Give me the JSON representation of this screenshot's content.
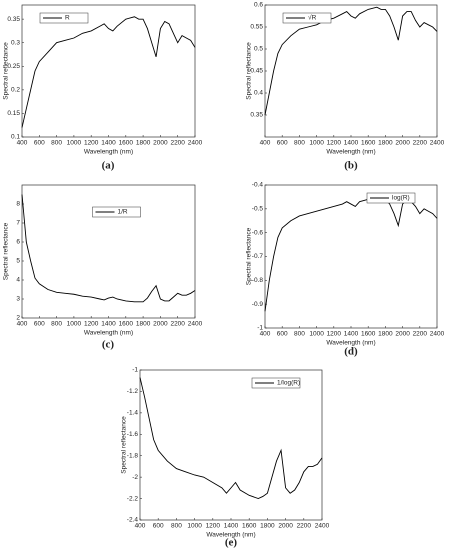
{
  "chart_data": [
    {
      "type": "line",
      "caption": "(a)",
      "x_label": "Wavelength (nm)",
      "y_label": "Spectral reflectance",
      "x": [
        400,
        450,
        500,
        550,
        600,
        700,
        800,
        900,
        1000,
        1100,
        1200,
        1300,
        1350,
        1400,
        1450,
        1500,
        1600,
        1700,
        1750,
        1800,
        1850,
        1900,
        1950,
        2000,
        2050,
        2100,
        2150,
        2200,
        2250,
        2300,
        2350,
        2400
      ],
      "series": [
        {
          "name": "R",
          "color": "#000000",
          "values": [
            0.12,
            0.16,
            0.2,
            0.24,
            0.26,
            0.28,
            0.3,
            0.305,
            0.31,
            0.32,
            0.325,
            0.335,
            0.34,
            0.33,
            0.325,
            0.335,
            0.35,
            0.355,
            0.35,
            0.35,
            0.33,
            0.3,
            0.27,
            0.33,
            0.345,
            0.34,
            0.32,
            0.3,
            0.315,
            0.31,
            0.305,
            0.29
          ]
        }
      ],
      "xlim": [
        400,
        2400
      ],
      "ylim": [
        0.1,
        0.38
      ],
      "xticks": [
        400,
        600,
        800,
        1000,
        1200,
        1400,
        1600,
        1800,
        2000,
        2200,
        2400
      ],
      "yticks": [
        0.1,
        0.15,
        0.2,
        0.25,
        0.3,
        0.35
      ],
      "legend": "upper left"
    },
    {
      "type": "line",
      "caption": "(b)",
      "x_label": "Wavelength (nm)",
      "y_label": "Spectral reflectance",
      "x": [
        400,
        450,
        500,
        550,
        600,
        700,
        800,
        900,
        1000,
        1100,
        1200,
        1300,
        1350,
        1400,
        1450,
        1500,
        1600,
        1700,
        1750,
        1800,
        1850,
        1900,
        1950,
        2000,
        2050,
        2100,
        2150,
        2200,
        2250,
        2300,
        2350,
        2400
      ],
      "series": [
        {
          "name": "√R",
          "color": "#000000",
          "values": [
            0.35,
            0.4,
            0.45,
            0.49,
            0.51,
            0.53,
            0.545,
            0.55,
            0.555,
            0.565,
            0.57,
            0.58,
            0.585,
            0.575,
            0.57,
            0.58,
            0.59,
            0.595,
            0.59,
            0.59,
            0.575,
            0.55,
            0.52,
            0.575,
            0.585,
            0.585,
            0.565,
            0.55,
            0.56,
            0.555,
            0.55,
            0.54
          ]
        }
      ],
      "xlim": [
        400,
        2400
      ],
      "ylim": [
        0.3,
        0.6
      ],
      "xticks": [
        400,
        600,
        800,
        1000,
        1200,
        1400,
        1600,
        1800,
        2000,
        2200,
        2400
      ],
      "yticks": [
        0.35,
        0.4,
        0.45,
        0.5,
        0.55,
        0.6
      ],
      "legend": "upper left"
    },
    {
      "type": "line",
      "caption": "(c)",
      "x_label": "Wavelength (nm)",
      "y_label": "Spectral reflectance",
      "x": [
        400,
        450,
        500,
        550,
        600,
        700,
        800,
        900,
        1000,
        1100,
        1200,
        1300,
        1350,
        1400,
        1450,
        1500,
        1600,
        1700,
        1750,
        1800,
        1850,
        1900,
        1950,
        2000,
        2050,
        2100,
        2150,
        2200,
        2250,
        2300,
        2350,
        2400
      ],
      "series": [
        {
          "name": "1/R",
          "color": "#000000",
          "values": [
            8.5,
            6,
            5,
            4.1,
            3.8,
            3.5,
            3.35,
            3.3,
            3.25,
            3.15,
            3.1,
            3.0,
            2.95,
            3.05,
            3.1,
            3.0,
            2.9,
            2.85,
            2.85,
            2.85,
            3.05,
            3.4,
            3.7,
            3.0,
            2.9,
            2.9,
            3.1,
            3.3,
            3.2,
            3.2,
            3.3,
            3.45
          ]
        }
      ],
      "xlim": [
        400,
        2400
      ],
      "ylim": [
        2,
        9
      ],
      "xticks": [
        400,
        600,
        800,
        1000,
        1200,
        1400,
        1600,
        1800,
        2000,
        2200,
        2400
      ],
      "yticks": [
        2,
        3,
        4,
        5,
        6,
        7,
        8
      ],
      "legend": "upper center"
    },
    {
      "type": "line",
      "caption": "(d)",
      "x_label": "Wavelength (nm)",
      "y_label": "Spectral reflectance",
      "x": [
        400,
        450,
        500,
        550,
        600,
        700,
        800,
        900,
        1000,
        1100,
        1200,
        1300,
        1350,
        1400,
        1450,
        1500,
        1600,
        1700,
        1750,
        1800,
        1850,
        1900,
        1950,
        2000,
        2050,
        2100,
        2150,
        2200,
        2250,
        2300,
        2350,
        2400
      ],
      "series": [
        {
          "name": "log(R)",
          "color": "#000000",
          "values": [
            -0.93,
            -0.8,
            -0.7,
            -0.62,
            -0.58,
            -0.55,
            -0.53,
            -0.52,
            -0.51,
            -0.5,
            -0.49,
            -0.48,
            -0.47,
            -0.48,
            -0.49,
            -0.47,
            -0.46,
            -0.45,
            -0.46,
            -0.46,
            -0.48,
            -0.52,
            -0.57,
            -0.48,
            -0.46,
            -0.47,
            -0.49,
            -0.52,
            -0.5,
            -0.51,
            -0.52,
            -0.54
          ]
        }
      ],
      "xlim": [
        400,
        2400
      ],
      "ylim": [
        -1,
        -0.4
      ],
      "xticks": [
        400,
        600,
        800,
        1000,
        1200,
        1400,
        1600,
        1800,
        2000,
        2200,
        2400
      ],
      "yticks": [
        -1,
        -0.9,
        -0.8,
        -0.7,
        -0.6,
        -0.5,
        -0.4
      ],
      "legend": "upper right"
    },
    {
      "type": "line",
      "caption": "(e)",
      "x_label": "Wavelength (nm)",
      "y_label": "Spectral reflectance",
      "x": [
        400,
        450,
        500,
        550,
        600,
        700,
        800,
        900,
        1000,
        1100,
        1200,
        1300,
        1350,
        1400,
        1450,
        1500,
        1600,
        1700,
        1750,
        1800,
        1850,
        1900,
        1950,
        2000,
        2050,
        2100,
        2150,
        2200,
        2250,
        2300,
        2350,
        2400
      ],
      "series": [
        {
          "name": "1/log(R)",
          "color": "#000000",
          "values": [
            -1.07,
            -1.25,
            -1.45,
            -1.65,
            -1.75,
            -1.85,
            -1.92,
            -1.95,
            -1.98,
            -2.0,
            -2.05,
            -2.1,
            -2.15,
            -2.1,
            -2.05,
            -2.12,
            -2.17,
            -2.2,
            -2.18,
            -2.15,
            -2.0,
            -1.85,
            -1.75,
            -2.1,
            -2.15,
            -2.12,
            -2.05,
            -1.95,
            -1.9,
            -1.9,
            -1.88,
            -1.82
          ]
        }
      ],
      "xlim": [
        400,
        2400
      ],
      "ylim": [
        -2.4,
        -1
      ],
      "xticks": [
        400,
        600,
        800,
        1000,
        1200,
        1400,
        1600,
        1800,
        2000,
        2200,
        2400
      ],
      "yticks": [
        -2.4,
        -2.2,
        -2,
        -1.8,
        -1.6,
        -1.4,
        -1.2,
        -1
      ],
      "legend": "upper right"
    }
  ]
}
